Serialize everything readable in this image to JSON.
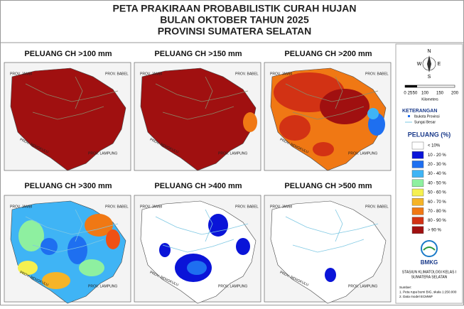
{
  "header": {
    "lines": [
      "PETA PRAKIRAAN PROBABILISTIK CURAH HUJAN",
      "BULAN OKTOBER TAHUN 2025",
      "PROVINSI SUMATERA SELATAN"
    ]
  },
  "maps": [
    {
      "title": "PELUANG CH >100 mm",
      "labels": [
        "PROV. JAMBI",
        "PROV. BABEL",
        "PROV. BENGKULU",
        "PROV. LAMPUNG"
      ]
    },
    {
      "title": "PELUANG CH >150 mm",
      "labels": [
        "PROV. JAMBI",
        "PROV. BABEL",
        "PROV. BENGKULU",
        "PROV. LAMPUNG"
      ]
    },
    {
      "title": "PELUANG CH >200 mm",
      "labels": [
        "PROV. JAMBI",
        "PROV. BABEL",
        "PROV. BENGKULU",
        "PROV. LAMPUNG"
      ]
    },
    {
      "title": "PELUANG CH >300 mm",
      "labels": [
        "PROV. JAMBI",
        "PROV. BABEL",
        "PROV. BENGKULU",
        "PROV. LAMPUNG"
      ]
    },
    {
      "title": "PELUANG CH >400 mm",
      "labels": [
        "PROV. JAMBI",
        "PROV. BABEL",
        "PROV. BENGKULU",
        "PROV. LAMPUNG"
      ]
    },
    {
      "title": "PELUANG CH >500 mm",
      "labels": [
        "PROV. JAMBI",
        "PROV. BABEL",
        "PROV. BENGKULU",
        "PROV. LAMPUNG"
      ]
    }
  ],
  "legend": {
    "compass": [
      "N",
      "W",
      "E",
      "S"
    ],
    "scale": [
      "0",
      "25",
      "50",
      "100",
      "150",
      "200"
    ],
    "scale_unit": "Kilometers",
    "keterangan": {
      "title": "KETERANGAN",
      "items": [
        "Ibukota Provinsi",
        "Sungai Besar"
      ]
    },
    "peluang": {
      "title": "PELUANG (%)",
      "classes": [
        {
          "label": "< 10%",
          "color": "#ffffff"
        },
        {
          "label": "10 - 20 %",
          "color": "#0a14d8"
        },
        {
          "label": "20 - 30 %",
          "color": "#1e6ff0"
        },
        {
          "label": "30 - 40 %",
          "color": "#3fb4f5"
        },
        {
          "label": "40 - 50 %",
          "color": "#8ef0a0"
        },
        {
          "label": "50 - 60 %",
          "color": "#f5f050"
        },
        {
          "label": "60 - 70 %",
          "color": "#f5b428"
        },
        {
          "label": "70 - 80 %",
          "color": "#f07814"
        },
        {
          "label": "80 - 90 %",
          "color": "#d23214"
        },
        {
          "label": "> 90 %",
          "color": "#a01010"
        }
      ]
    },
    "logo": "BMKG",
    "station": [
      "STASIUN KLIMATOLOGI KELAS I",
      "SUMATERA SELATAN"
    ],
    "source": [
      "Sumber:",
      "1. Peta rupa bumi BIG, skala 1:250.000",
      "2. Data model ECMWF"
    ]
  }
}
